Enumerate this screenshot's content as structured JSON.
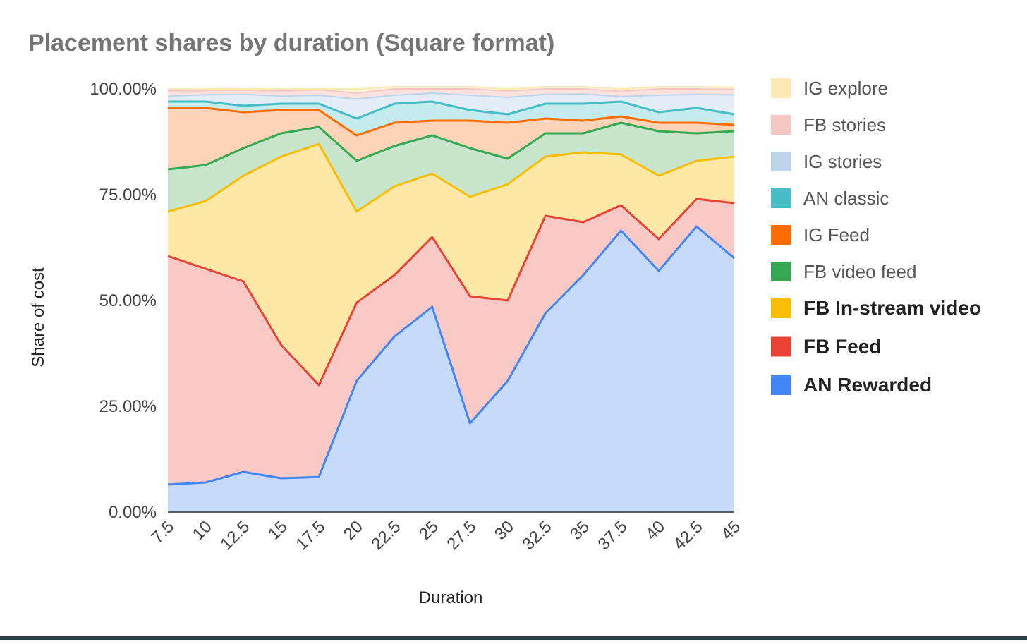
{
  "chart_data": {
    "type": "area",
    "stacked": true,
    "title": "Placement shares by duration (Square format)",
    "xlabel": "Duration",
    "ylabel": "Share of cost",
    "ylim": [
      0,
      100
    ],
    "y_ticks": [
      "0.00%",
      "25.00%",
      "50.00%",
      "75.00%",
      "100.00%"
    ],
    "y_tick_values": [
      0,
      25,
      50,
      75,
      100
    ],
    "grid": true,
    "legend_position": "right",
    "categories": [
      "7.5",
      "10",
      "12.5",
      "15",
      "17.5",
      "20",
      "22.5",
      "25",
      "27.5",
      "30",
      "32.5",
      "35",
      "37.5",
      "40",
      "42.5",
      "45"
    ],
    "series": [
      {
        "name": "AN Rewarded",
        "color": "#4285f4",
        "fill": "#c6dafc",
        "bold": true,
        "values": [
          6.5,
          7,
          9.5,
          8,
          8.3,
          31,
          41.5,
          48.5,
          21,
          31,
          47,
          56,
          66.5,
          57,
          67.5,
          60
        ]
      },
      {
        "name": "FB Feed",
        "color": "#ea4335",
        "fill": "#f8c9c5",
        "bold": true,
        "values": [
          54,
          50.5,
          45,
          31.5,
          21.7,
          18.5,
          14.5,
          16.5,
          30,
          19,
          23,
          12.5,
          6,
          7.5,
          6.5,
          13
        ]
      },
      {
        "name": "FB In-stream video",
        "color": "#fbbc04",
        "fill": "#fde8a8",
        "bold": true,
        "values": [
          10.5,
          16,
          25,
          44.5,
          57,
          21.5,
          21,
          15,
          23.5,
          27.5,
          14,
          16.5,
          12,
          15,
          9,
          11
        ]
      },
      {
        "name": "FB video feed",
        "color": "#34a853",
        "fill": "#c8e6cc",
        "bold": false,
        "values": [
          10,
          8.5,
          6.5,
          5.5,
          4,
          12,
          9.5,
          9,
          11.5,
          6,
          5.5,
          4.5,
          7.5,
          10.5,
          6.5,
          6
        ]
      },
      {
        "name": "IG Feed",
        "color": "#ff6d01",
        "fill": "#fdd4b8",
        "bold": false,
        "values": [
          14.5,
          13.5,
          8.5,
          5.5,
          4,
          6,
          5.5,
          3.5,
          6.5,
          8.5,
          3.5,
          3,
          1.5,
          2,
          2.5,
          1.5
        ]
      },
      {
        "name": "AN classic",
        "color": "#46bdc6",
        "fill": "#c4ecef",
        "bold": false,
        "values": [
          1.5,
          1.5,
          1.5,
          1.5,
          1.5,
          4,
          4.5,
          4.5,
          2.5,
          2,
          3.5,
          4,
          3.5,
          2.5,
          3.5,
          2.5
        ]
      },
      {
        "name": "IG stories",
        "color": "#bcd4ea",
        "fill": "#e3edf7",
        "bold": false,
        "values": [
          1.3,
          1.6,
          2.7,
          1.8,
          2,
          4.6,
          2,
          2,
          3.5,
          4,
          2.2,
          2.3,
          1.2,
          4,
          3.2,
          4.6
        ]
      },
      {
        "name": "FB stories",
        "color": "#f4c7c3",
        "fill": "#fbe2df",
        "bold": false,
        "values": [
          1.2,
          1,
          1,
          1.2,
          1.3,
          1.4,
          1.5,
          1,
          1.5,
          1.5,
          1.3,
          1.2,
          1.2,
          1.5,
          1.3,
          1.3
        ]
      },
      {
        "name": "IG explore",
        "color": "#fce8b2",
        "fill": "#fdf3d6",
        "bold": false,
        "values": [
          0.5,
          0.4,
          0.3,
          0.5,
          0.2,
          1,
          0.5,
          0.5,
          0.5,
          0.5,
          0.5,
          0.5,
          0.6,
          0.5,
          0.5,
          0.5
        ]
      }
    ]
  }
}
